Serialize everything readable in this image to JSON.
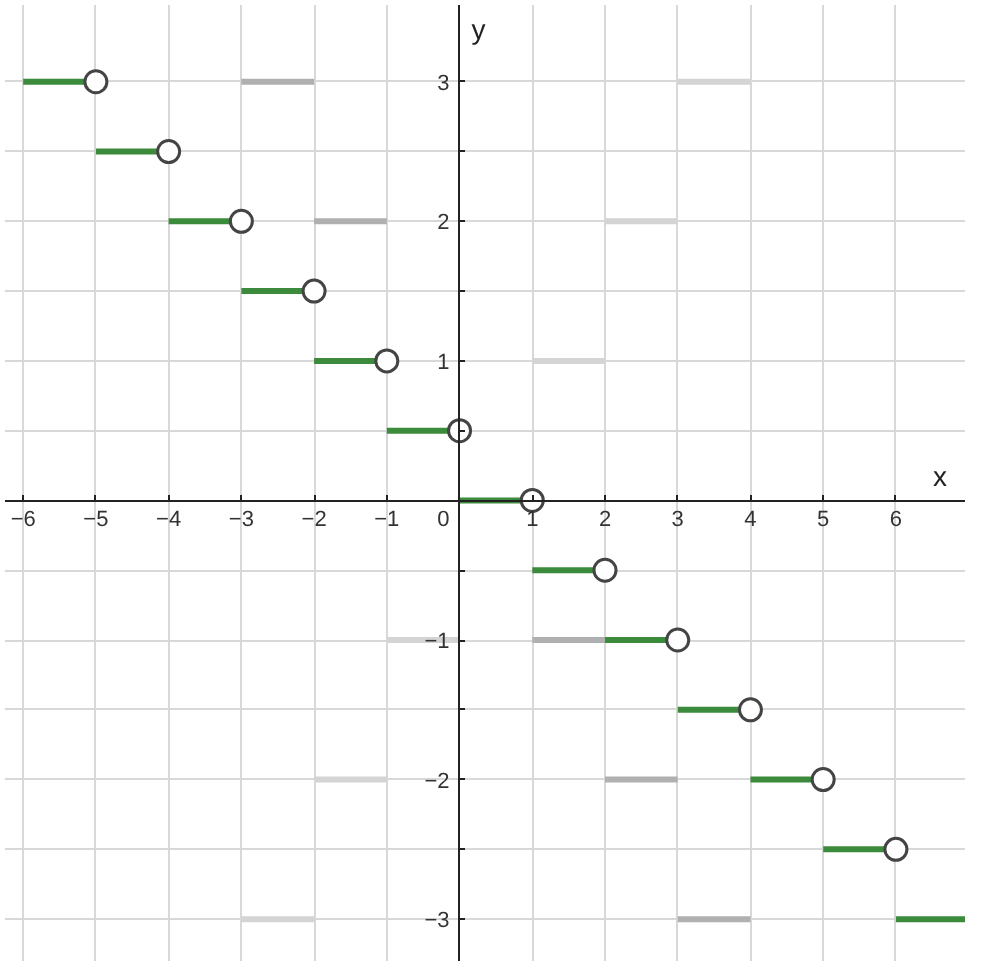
{
  "chart_data": {
    "type": "line",
    "xlabel": "x",
    "ylabel": "y",
    "xlim": [
      -6.25,
      6.95
    ],
    "ylim": [
      -3.3,
      3.55
    ],
    "xticks": [
      {
        "value": -6,
        "label": "−6"
      },
      {
        "value": -5,
        "label": "−5"
      },
      {
        "value": -4,
        "label": "−4"
      },
      {
        "value": -3,
        "label": "−3"
      },
      {
        "value": -2,
        "label": "−2"
      },
      {
        "value": -1,
        "label": "−1"
      },
      0,
      1,
      2,
      3,
      4,
      5,
      6
    ],
    "yticks": [
      {
        "value": -3,
        "label": "−3"
      },
      {
        "value": -2.5,
        "label": null
      },
      {
        "value": -2,
        "label": "−2"
      },
      {
        "value": -1.5,
        "label": null
      },
      {
        "value": -1,
        "label": "−1"
      },
      {
        "value": -0.5,
        "label": null
      },
      {
        "value": 0,
        "label": null
      },
      {
        "value": 0.5,
        "label": null
      },
      1,
      {
        "value": 1.5,
        "label": null
      },
      2,
      {
        "value": 2.5,
        "label": null
      },
      3
    ],
    "grid": true,
    "line_style": "solid",
    "series": [
      {
        "color": "#b0b0b0",
        "x": [
          -3,
          -2,
          null,
          -2,
          -1,
          null,
          1,
          2,
          null,
          2,
          3,
          null,
          3,
          4
        ],
        "values": [
          3,
          3,
          null,
          2,
          2,
          null,
          -1,
          -1,
          null,
          -2,
          -2,
          null,
          -3,
          -3
        ]
      },
      {
        "color": "#d4d4d4",
        "x": [
          3,
          4,
          null,
          2,
          3,
          null,
          1,
          2,
          null,
          -1,
          0,
          null,
          -2,
          -1,
          null,
          -3,
          -2
        ],
        "values": [
          3,
          3,
          null,
          2,
          2,
          null,
          1,
          1,
          null,
          -1,
          -1,
          null,
          -2,
          -2,
          null,
          -3,
          -3
        ]
      },
      {
        "color": "#3c8a3c",
        "x": [
          -6,
          -5,
          null,
          -5,
          -4,
          null,
          -4,
          -3,
          null,
          -3,
          -2,
          null,
          -2,
          -1,
          null,
          -1,
          0,
          null,
          0,
          1,
          null,
          1,
          2,
          null,
          2,
          3,
          null,
          3,
          4,
          null,
          4,
          5,
          null,
          5,
          6,
          null,
          6,
          6.95
        ],
        "values": [
          3,
          3,
          null,
          2.5,
          2.5,
          null,
          2,
          2,
          null,
          1.5,
          1.5,
          null,
          1,
          1,
          null,
          0.5,
          0.5,
          null,
          0,
          0,
          null,
          -0.5,
          -0.5,
          null,
          -1,
          -1,
          null,
          -1.5,
          -1.5,
          null,
          -2,
          -2,
          null,
          -2.5,
          -2.5,
          null,
          -3,
          -3
        ]
      },
      {
        "type": "scatter",
        "marker": "circle",
        "color": "#ffffff",
        "x": [
          -5,
          -4,
          -3,
          -2,
          -1,
          0,
          1,
          2,
          3,
          4,
          5,
          6
        ],
        "values": [
          3,
          2.5,
          2,
          1.5,
          1,
          0.5,
          0,
          -0.5,
          -1,
          -1.5,
          -2,
          -2.5
        ]
      }
    ]
  }
}
